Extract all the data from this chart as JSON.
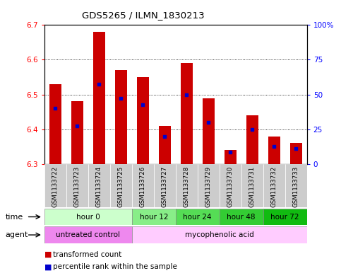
{
  "title": "GDS5265 / ILMN_1830213",
  "samples": [
    "GSM1133722",
    "GSM1133723",
    "GSM1133724",
    "GSM1133725",
    "GSM1133726",
    "GSM1133727",
    "GSM1133728",
    "GSM1133729",
    "GSM1133730",
    "GSM1133731",
    "GSM1133732",
    "GSM1133733"
  ],
  "bar_values": [
    6.53,
    6.48,
    6.68,
    6.57,
    6.55,
    6.41,
    6.59,
    6.49,
    6.34,
    6.44,
    6.38,
    6.36
  ],
  "bar_bottom": 6.3,
  "percentile_values": [
    6.46,
    6.41,
    6.53,
    6.49,
    6.47,
    6.38,
    6.5,
    6.42,
    6.335,
    6.4,
    6.35,
    6.345
  ],
  "bar_color": "#cc0000",
  "percentile_color": "#0000cc",
  "ylim": [
    6.3,
    6.7
  ],
  "yticks_left": [
    6.3,
    6.4,
    6.5,
    6.6,
    6.7
  ],
  "yticks_right": [
    0,
    25,
    50,
    75,
    100
  ],
  "time_groups": [
    {
      "label": "hour 0",
      "start": 0,
      "end": 4,
      "color": "#ccffcc"
    },
    {
      "label": "hour 12",
      "start": 4,
      "end": 6,
      "color": "#88ee88"
    },
    {
      "label": "hour 24",
      "start": 6,
      "end": 8,
      "color": "#55dd55"
    },
    {
      "label": "hour 48",
      "start": 8,
      "end": 10,
      "color": "#33cc33"
    },
    {
      "label": "hour 72",
      "start": 10,
      "end": 12,
      "color": "#11bb11"
    }
  ],
  "agent_groups": [
    {
      "label": "untreated control",
      "start": 0,
      "end": 4,
      "color": "#ee88ee"
    },
    {
      "label": "mycophenolic acid",
      "start": 4,
      "end": 12,
      "color": "#ffccff"
    }
  ],
  "legend_bar_label": "transformed count",
  "legend_pct_label": "percentile rank within the sample",
  "time_label": "time",
  "agent_label": "agent",
  "sample_bg_color": "#cccccc",
  "figsize": [
    4.83,
    3.93
  ],
  "dpi": 100
}
